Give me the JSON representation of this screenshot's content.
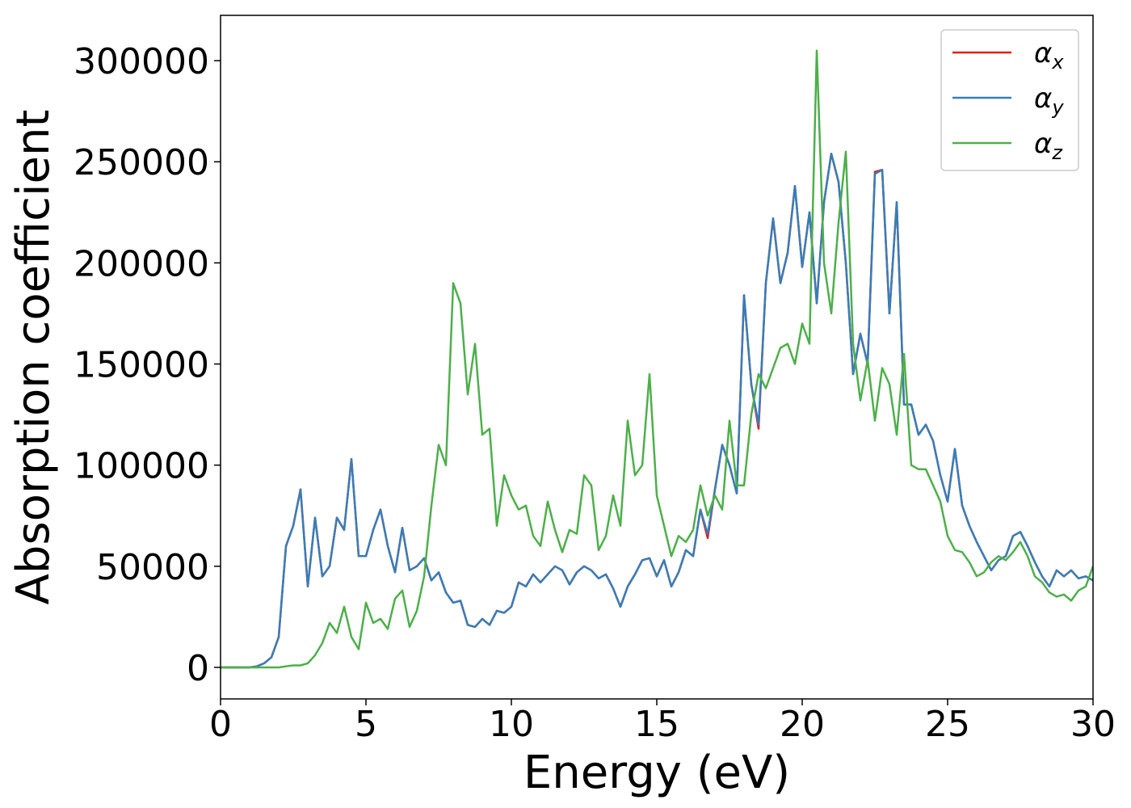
{
  "chart_data": {
    "type": "line",
    "xlabel": "Energy (eV)",
    "ylabel": "Absorption coefficient",
    "x": [
      0,
      0.25,
      0.5,
      0.75,
      1,
      1.25,
      1.5,
      1.75,
      2,
      2.25,
      2.5,
      2.75,
      3,
      3.25,
      3.5,
      3.75,
      4,
      4.25,
      4.5,
      4.75,
      5,
      5.25,
      5.5,
      5.75,
      6,
      6.25,
      6.5,
      6.75,
      7,
      7.25,
      7.5,
      7.75,
      8,
      8.25,
      8.5,
      8.75,
      9,
      9.25,
      9.5,
      9.75,
      10,
      10.25,
      10.5,
      10.75,
      11,
      11.25,
      11.5,
      11.75,
      12,
      12.25,
      12.5,
      12.75,
      13,
      13.25,
      13.5,
      13.75,
      14,
      14.25,
      14.5,
      14.75,
      15,
      15.25,
      15.5,
      15.75,
      16,
      16.25,
      16.5,
      16.75,
      17,
      17.25,
      17.5,
      17.75,
      18,
      18.25,
      18.5,
      18.75,
      19,
      19.25,
      19.5,
      19.75,
      20,
      20.25,
      20.5,
      20.75,
      21,
      21.25,
      21.5,
      21.75,
      22,
      22.25,
      22.5,
      22.75,
      23,
      23.25,
      23.5,
      23.75,
      24,
      24.25,
      24.5,
      24.75,
      25,
      25.25,
      25.5,
      25.75,
      26,
      26.25,
      26.5,
      26.75,
      27,
      27.25,
      27.5,
      27.75,
      28,
      28.25,
      28.5,
      28.75,
      29,
      29.25,
      29.5,
      29.75,
      30
    ],
    "series": [
      {
        "name": "αx",
        "color": "#e41a1c",
        "values": [
          0,
          0,
          0,
          0,
          0,
          500,
          2000,
          5000,
          15000,
          60000,
          70000,
          88000,
          40000,
          74000,
          45000,
          50000,
          74000,
          68000,
          103000,
          55000,
          55000,
          68000,
          78000,
          60000,
          47000,
          69000,
          48000,
          50000,
          54000,
          43000,
          47000,
          37000,
          32000,
          33000,
          21000,
          20000,
          24000,
          21000,
          28000,
          27000,
          30000,
          42000,
          40000,
          46000,
          42000,
          46000,
          50000,
          48000,
          41000,
          47000,
          50000,
          48000,
          44000,
          46000,
          39000,
          30000,
          40000,
          46000,
          53000,
          54000,
          45000,
          53000,
          40000,
          47000,
          58000,
          55000,
          78000,
          64000,
          88000,
          110000,
          100000,
          86000,
          184000,
          140000,
          118000,
          190000,
          222000,
          190000,
          205000,
          238000,
          198000,
          225000,
          180000,
          230000,
          254000,
          240000,
          200000,
          145000,
          165000,
          150000,
          245000,
          246000,
          175000,
          230000,
          130000,
          130000,
          115000,
          120000,
          112000,
          95000,
          82000,
          108000,
          80000,
          70000,
          62000,
          55000,
          48000,
          53000,
          55000,
          65000,
          67000,
          60000,
          52000,
          45000,
          40000,
          48000,
          45000,
          48000,
          44000,
          45000,
          43000
        ]
      },
      {
        "name": "αy",
        "color": "#377eb8",
        "values": [
          0,
          0,
          0,
          0,
          0,
          500,
          2000,
          5000,
          15000,
          60000,
          70000,
          88000,
          40000,
          74000,
          45000,
          50000,
          74000,
          68000,
          103000,
          55000,
          55000,
          68000,
          78000,
          60000,
          47000,
          69000,
          48000,
          50000,
          54000,
          43000,
          47000,
          37000,
          32000,
          33000,
          21000,
          20000,
          24000,
          21000,
          28000,
          27000,
          30000,
          42000,
          40000,
          46000,
          42000,
          46000,
          50000,
          48000,
          41000,
          47000,
          50000,
          48000,
          44000,
          46000,
          39000,
          30000,
          40000,
          46000,
          53000,
          54000,
          45000,
          53000,
          40000,
          47000,
          58000,
          55000,
          78000,
          66000,
          88000,
          110000,
          100000,
          86000,
          184000,
          140000,
          120000,
          190000,
          222000,
          190000,
          205000,
          238000,
          198000,
          225000,
          180000,
          230000,
          254000,
          240000,
          200000,
          145000,
          165000,
          150000,
          244000,
          246000,
          175000,
          230000,
          130000,
          130000,
          115000,
          120000,
          112000,
          95000,
          82000,
          108000,
          80000,
          70000,
          62000,
          55000,
          48000,
          53000,
          55000,
          65000,
          67000,
          60000,
          52000,
          45000,
          40000,
          48000,
          45000,
          48000,
          44000,
          45000,
          43000
        ]
      },
      {
        "name": "αz",
        "color": "#4daf4a",
        "values": [
          0,
          0,
          0,
          0,
          0,
          0,
          0,
          0,
          0,
          500,
          1000,
          1000,
          2000,
          6000,
          12000,
          22000,
          17000,
          30000,
          15000,
          9000,
          32000,
          22000,
          24000,
          19000,
          34000,
          38000,
          20000,
          28000,
          45000,
          80000,
          110000,
          100000,
          190000,
          180000,
          135000,
          160000,
          115000,
          118000,
          70000,
          95000,
          85000,
          78000,
          80000,
          65000,
          60000,
          82000,
          68000,
          57000,
          68000,
          66000,
          95000,
          90000,
          58000,
          65000,
          85000,
          70000,
          122000,
          95000,
          100000,
          145000,
          85000,
          70000,
          55000,
          65000,
          62000,
          68000,
          90000,
          75000,
          85000,
          78000,
          122000,
          90000,
          90000,
          125000,
          145000,
          138000,
          148000,
          158000,
          160000,
          150000,
          170000,
          160000,
          305000,
          200000,
          175000,
          220000,
          255000,
          160000,
          132000,
          152000,
          122000,
          148000,
          140000,
          115000,
          155000,
          100000,
          98000,
          98000,
          90000,
          82000,
          65000,
          58000,
          57000,
          52000,
          45000,
          47000,
          52000,
          55000,
          53000,
          57000,
          62000,
          55000,
          45000,
          42000,
          37000,
          35000,
          36000,
          33000,
          38000,
          40000,
          50000
        ]
      }
    ],
    "xlim": [
      0,
      30
    ],
    "xticks": [
      0,
      5,
      10,
      15,
      20,
      25,
      30
    ],
    "ylim": [
      -15600,
      322400
    ],
    "yticks": [
      0,
      50000,
      100000,
      150000,
      200000,
      250000,
      300000
    ],
    "legend": "upper right"
  }
}
